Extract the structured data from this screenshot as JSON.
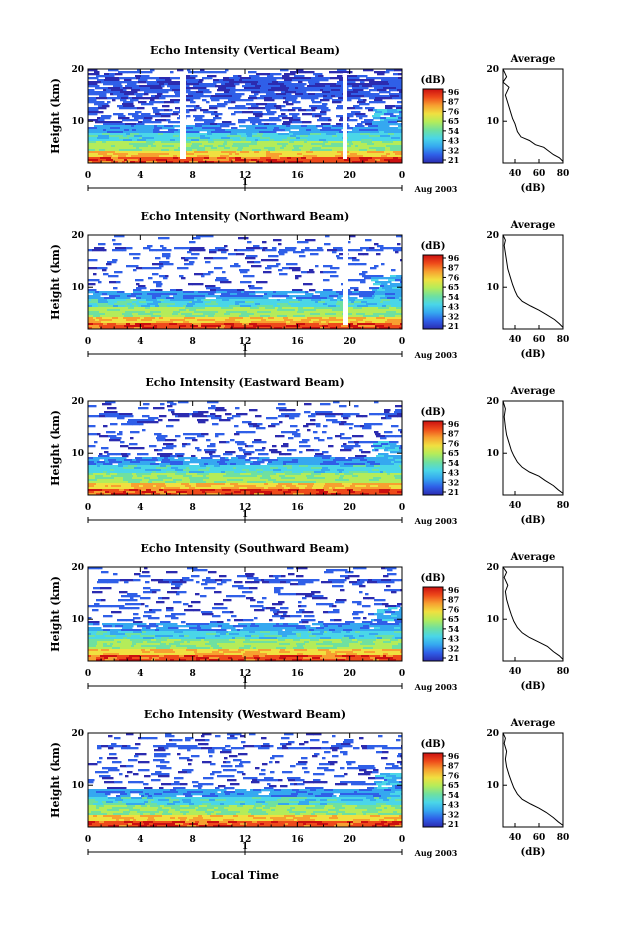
{
  "figure": {
    "xlabel": "Local Time",
    "date_label": "Aug 2003",
    "day_label": "1",
    "colorbar_unit": "(dB)",
    "colorbar_ticks": [
      "96",
      "87",
      "76",
      "65",
      "54",
      "43",
      "32",
      "21"
    ],
    "profile_title": "Average",
    "profile_xlabel": "(dB)",
    "ylabel": "Height (km)",
    "colormap": [
      "#2b2bb0",
      "#2f5fe8",
      "#35a8f0",
      "#4ad6e8",
      "#6fe0a0",
      "#b4ec5a",
      "#f0e040",
      "#f7a030",
      "#ee4a1a",
      "#cc1010"
    ]
  },
  "chart_data": [
    {
      "type": "heatmap",
      "title": "Echo Intensity (Vertical Beam)",
      "xlabel": "Local Time",
      "ylabel": "Height (km)",
      "xticks": [
        "0",
        "4",
        "8",
        "12",
        "16",
        "20",
        "0"
      ],
      "xlim": [
        0,
        24
      ],
      "yticks": [
        "10",
        "20"
      ],
      "ylim": [
        2,
        20
      ],
      "colorbar": {
        "label": "(dB)",
        "ticks": [
          "96",
          "87",
          "76",
          "65",
          "54",
          "43",
          "32",
          "21"
        ]
      },
      "profile": {
        "title": "Average",
        "xlabel": "(dB)",
        "xticks": [
          "40",
          "60",
          "80"
        ],
        "xlim": [
          30,
          80
        ],
        "yticks": [
          "10",
          "20"
        ],
        "points": [
          [
            80,
            2.3
          ],
          [
            77,
            3
          ],
          [
            72,
            3.6
          ],
          [
            68,
            4.3
          ],
          [
            64,
            5
          ],
          [
            57,
            5.5
          ],
          [
            52,
            6.3
          ],
          [
            45,
            7
          ],
          [
            42,
            8
          ],
          [
            40,
            9.5
          ],
          [
            38,
            10.5
          ],
          [
            36,
            12
          ],
          [
            34,
            13.5
          ],
          [
            32,
            15
          ],
          [
            35,
            16.5
          ],
          [
            30,
            17.5
          ],
          [
            33,
            18.5
          ],
          [
            31,
            19.5
          ],
          [
            30,
            20
          ]
        ]
      }
    },
    {
      "type": "heatmap",
      "title": "Echo Intensity (Northward Beam)",
      "xlabel": "Local Time",
      "ylabel": "Height (km)",
      "xticks": [
        "0",
        "4",
        "8",
        "12",
        "16",
        "20",
        "0"
      ],
      "xlim": [
        0,
        24
      ],
      "yticks": [
        "10",
        "20"
      ],
      "ylim": [
        2,
        20
      ],
      "colorbar": {
        "label": "(dB)",
        "ticks": [
          "96",
          "87",
          "76",
          "65",
          "54",
          "43",
          "32",
          "21"
        ]
      },
      "profile": {
        "title": "Average",
        "xlabel": "(dB)",
        "xticks": [
          "40",
          "60",
          "80"
        ],
        "xlim": [
          30,
          80
        ],
        "yticks": [
          "10",
          "20"
        ],
        "points": [
          [
            80,
            2.3
          ],
          [
            77,
            3
          ],
          [
            73,
            3.8
          ],
          [
            66,
            4.8
          ],
          [
            60,
            5.6
          ],
          [
            53,
            6.4
          ],
          [
            46,
            7.3
          ],
          [
            42,
            8.3
          ],
          [
            40,
            9.3
          ],
          [
            38,
            10.5
          ],
          [
            36,
            12
          ],
          [
            34,
            13.5
          ],
          [
            33,
            15
          ],
          [
            32,
            16.5
          ],
          [
            31,
            18
          ],
          [
            32,
            19
          ],
          [
            30,
            20
          ]
        ]
      }
    },
    {
      "type": "heatmap",
      "title": "Echo Intensity (Eastward Beam)",
      "xlabel": "Local Time",
      "ylabel": "Height (km)",
      "xticks": [
        "0",
        "4",
        "8",
        "12",
        "16",
        "20",
        "0"
      ],
      "xlim": [
        0,
        24
      ],
      "yticks": [
        "10",
        "20"
      ],
      "ylim": [
        2,
        20
      ],
      "colorbar": {
        "label": "(dB)",
        "ticks": [
          "96",
          "87",
          "76",
          "65",
          "54",
          "43",
          "32",
          "21"
        ]
      },
      "profile": {
        "title": "Average",
        "xlabel": "(dB)",
        "xticks": [
          "40",
          "80"
        ],
        "xlim": [
          30,
          80
        ],
        "yticks": [
          "10",
          "20"
        ],
        "points": [
          [
            80,
            2.3
          ],
          [
            76,
            3
          ],
          [
            72,
            3.8
          ],
          [
            65,
            4.8
          ],
          [
            60,
            5.6
          ],
          [
            52,
            6.4
          ],
          [
            46,
            7.3
          ],
          [
            42,
            8.3
          ],
          [
            39,
            9.5
          ],
          [
            37,
            10.5
          ],
          [
            35,
            12
          ],
          [
            33,
            13.5
          ],
          [
            32,
            15
          ],
          [
            31,
            17
          ],
          [
            32,
            18.5
          ],
          [
            30,
            20
          ]
        ]
      }
    },
    {
      "type": "heatmap",
      "title": "Echo Intensity (Southward Beam)",
      "xlabel": "Local Time",
      "ylabel": "Height (km)",
      "xticks": [
        "0",
        "4",
        "8",
        "12",
        "16",
        "20",
        "0"
      ],
      "xlim": [
        0,
        24
      ],
      "yticks": [
        "10",
        "20"
      ],
      "ylim": [
        2,
        20
      ],
      "colorbar": {
        "label": "(dB)",
        "ticks": [
          "96",
          "87",
          "76",
          "65",
          "54",
          "43",
          "32",
          "21"
        ]
      },
      "profile": {
        "title": "Average",
        "xlabel": "(dB)",
        "xticks": [
          "40",
          "80"
        ],
        "xlim": [
          30,
          80
        ],
        "yticks": [
          "10",
          "20"
        ],
        "points": [
          [
            80,
            2.3
          ],
          [
            77,
            3
          ],
          [
            72,
            3.8
          ],
          [
            67,
            4.8
          ],
          [
            60,
            5.6
          ],
          [
            52,
            6.5
          ],
          [
            46,
            7.4
          ],
          [
            42,
            8.4
          ],
          [
            39,
            9.6
          ],
          [
            37,
            10.8
          ],
          [
            35,
            12.2
          ],
          [
            33,
            13.8
          ],
          [
            32,
            15.3
          ],
          [
            34,
            16.5
          ],
          [
            31,
            18
          ],
          [
            33,
            19
          ],
          [
            30,
            20
          ]
        ]
      }
    },
    {
      "type": "heatmap",
      "title": "Echo Intensity (Westward Beam)",
      "xlabel": "Local Time",
      "ylabel": "Height (km)",
      "xticks": [
        "0",
        "4",
        "8",
        "12",
        "16",
        "20",
        "0"
      ],
      "xlim": [
        0,
        24
      ],
      "yticks": [
        "10",
        "20"
      ],
      "ylim": [
        2,
        20
      ],
      "colorbar": {
        "label": "(dB)",
        "ticks": [
          "96",
          "87",
          "76",
          "65",
          "54",
          "43",
          "32",
          "21"
        ]
      },
      "profile": {
        "title": "Average",
        "xlabel": "(dB)",
        "xticks": [
          "40",
          "60",
          "80"
        ],
        "xlim": [
          30,
          80
        ],
        "yticks": [
          "10",
          "20"
        ],
        "points": [
          [
            80,
            2.3
          ],
          [
            76,
            3
          ],
          [
            72,
            3.8
          ],
          [
            66,
            4.8
          ],
          [
            60,
            5.6
          ],
          [
            53,
            6.4
          ],
          [
            46,
            7.3
          ],
          [
            42,
            8.3
          ],
          [
            39,
            9.5
          ],
          [
            37,
            10.7
          ],
          [
            35,
            12
          ],
          [
            33,
            13.5
          ],
          [
            32,
            15
          ],
          [
            33,
            16.5
          ],
          [
            31,
            18
          ],
          [
            32,
            19
          ],
          [
            30,
            20
          ]
        ]
      }
    }
  ]
}
